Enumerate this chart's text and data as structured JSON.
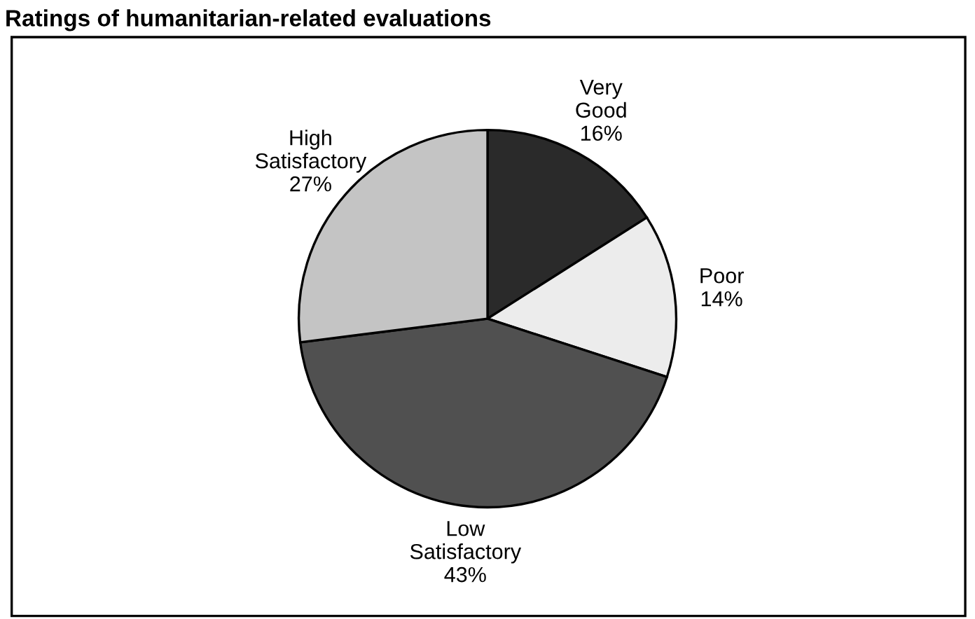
{
  "chart_data": {
    "type": "pie",
    "title": "Ratings of humanitarian-related evaluations",
    "categories": [
      "Very Good",
      "Poor",
      "Low Satisfactory",
      "High Satisfactory"
    ],
    "values": [
      16,
      14,
      43,
      27
    ],
    "value_labels": [
      "16%",
      "14%",
      "43%",
      "27%"
    ],
    "colors": [
      "#2a2a2a",
      "#ececec",
      "#505050",
      "#c4c4c4"
    ],
    "legend": false
  }
}
